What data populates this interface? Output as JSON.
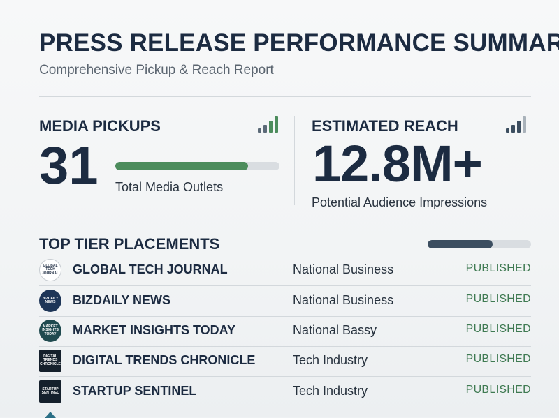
{
  "header": {
    "title": "PRESS RELEASE PERFORMANCE SUMMARY",
    "subtitle": "Comprehensive Pickup & Reach Report"
  },
  "media_pickups": {
    "label": "MEDIA PICKUPS",
    "value": "31",
    "caption": "Total Media Outlets",
    "bar_fill_fraction": 0.81,
    "bar_color": "#4c8c5c",
    "icon": "signal-bars-icon"
  },
  "estimated_reach": {
    "label": "ESTIMATED REACH",
    "value": "12.8M+",
    "caption": "Potential Audience Impressions",
    "icon": "signal-bars-icon"
  },
  "placements": {
    "title": "TOP TIER PLACEMENTS",
    "bar_fill_fraction": 0.63,
    "bar_color": "#3c4e60",
    "rows": [
      {
        "logo_text": "GLOBAL TECH JOURNAL",
        "name": "GLOBAL TECH JOURNAL",
        "category": "National Business",
        "status": "PUBLISHED"
      },
      {
        "logo_text": "BIZDAILY NEWS",
        "name": "BIZDAILY NEWS",
        "category": "National Business",
        "status": "PUBLISHED"
      },
      {
        "logo_text": "MARKET INSIGHTS TODAY",
        "name": "MARKET INSIGHTS TODAY",
        "category": "National Bassy",
        "status": "PUBLISHED"
      },
      {
        "logo_text": "DIGITAL TRENDS CHRONICLE",
        "name": "DIGITAL TRENDS CHRONICLE",
        "category": "Tech Industry",
        "status": "PUBLISHED"
      },
      {
        "logo_text": "STARTUP SENTINEL",
        "name": "STARTUP SENTINEL",
        "category": "Tech Industry",
        "status": "PUBLISHED"
      }
    ]
  },
  "colors": {
    "navy": "#1c2b41",
    "published_green": "#3f7a52",
    "signal_green": "#4c8c5c",
    "signal_slate": "#3c4e60"
  }
}
